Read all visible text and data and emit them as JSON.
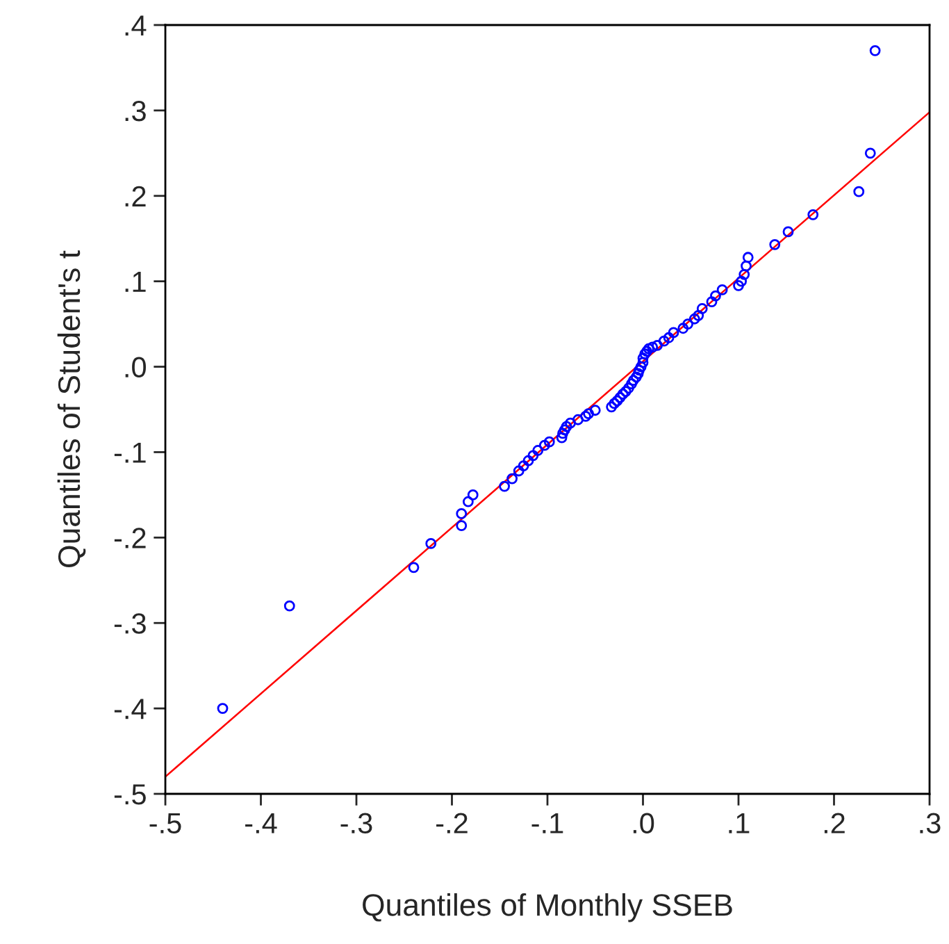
{
  "chart_data": {
    "type": "scatter",
    "xlabel": "Quantiles of Monthly SSEB",
    "ylabel": "Quantiles of Student's t",
    "series": [
      {
        "color": "#0000ff",
        "marker": "circle",
        "x": [
          -0.44,
          -0.37,
          -0.24,
          -0.222,
          -0.19,
          -0.19,
          -0.183,
          -0.178,
          -0.145,
          -0.137,
          -0.13,
          -0.125,
          -0.12,
          -0.115,
          -0.11,
          -0.103,
          -0.098,
          -0.085,
          -0.084,
          -0.082,
          -0.08,
          -0.076,
          -0.068,
          -0.06,
          -0.057,
          -0.05,
          -0.033,
          -0.03,
          -0.027,
          -0.024,
          -0.021,
          -0.018,
          -0.015,
          -0.012,
          -0.01,
          -0.007,
          -0.005,
          -0.004,
          -0.002,
          0.0,
          0.0,
          0.002,
          0.004,
          0.006,
          0.01,
          0.015,
          0.022,
          0.027,
          0.032,
          0.042,
          0.047,
          0.054,
          0.058,
          0.062,
          0.072,
          0.076,
          0.083,
          0.1,
          0.103,
          0.106,
          0.108,
          0.11,
          0.138,
          0.152,
          0.178,
          0.226,
          0.238,
          0.243
        ],
        "values": [
          -0.4,
          -0.28,
          -0.235,
          -0.207,
          -0.186,
          -0.172,
          -0.158,
          -0.15,
          -0.14,
          -0.131,
          -0.122,
          -0.116,
          -0.11,
          -0.104,
          -0.098,
          -0.092,
          -0.088,
          -0.083,
          -0.078,
          -0.074,
          -0.07,
          -0.066,
          -0.062,
          -0.058,
          -0.055,
          -0.051,
          -0.047,
          -0.043,
          -0.04,
          -0.036,
          -0.032,
          -0.029,
          -0.025,
          -0.02,
          -0.016,
          -0.012,
          -0.008,
          -0.004,
          0.0,
          0.005,
          0.01,
          0.015,
          0.018,
          0.021,
          0.023,
          0.025,
          0.03,
          0.034,
          0.04,
          0.045,
          0.05,
          0.056,
          0.06,
          0.068,
          0.076,
          0.083,
          0.09,
          0.095,
          0.1,
          0.108,
          0.118,
          0.128,
          0.143,
          0.158,
          0.178,
          0.205,
          0.25,
          0.37
        ]
      },
      {
        "type": "line",
        "color": "#ff0000",
        "line_style": "solid",
        "x": [
          -0.5,
          0.3
        ],
        "values": [
          -0.48,
          0.298
        ]
      }
    ],
    "xlim": [
      -0.5,
      0.3
    ],
    "ylim": [
      -0.5,
      0.4
    ],
    "xticks": [
      {
        "value": -0.5,
        "label": "-.5"
      },
      {
        "value": -0.4,
        "label": "-.4"
      },
      {
        "value": -0.3,
        "label": "-.3"
      },
      {
        "value": -0.2,
        "label": "-.2"
      },
      {
        "value": -0.1,
        "label": "-.1"
      },
      {
        "value": 0.0,
        "label": ".0"
      },
      {
        "value": 0.1,
        "label": ".1"
      },
      {
        "value": 0.2,
        "label": ".2"
      },
      {
        "value": 0.3,
        "label": ".3"
      }
    ],
    "yticks": [
      {
        "value": -0.5,
        "label": "-.5"
      },
      {
        "value": -0.4,
        "label": "-.4"
      },
      {
        "value": -0.3,
        "label": "-.3"
      },
      {
        "value": -0.2,
        "label": "-.2"
      },
      {
        "value": -0.1,
        "label": "-.1"
      },
      {
        "value": 0.0,
        "label": ".0"
      },
      {
        "value": 0.1,
        "label": ".1"
      },
      {
        "value": 0.2,
        "label": ".2"
      },
      {
        "value": 0.3,
        "label": ".3"
      },
      {
        "value": 0.4,
        "label": ".4"
      }
    ],
    "grid": false
  }
}
